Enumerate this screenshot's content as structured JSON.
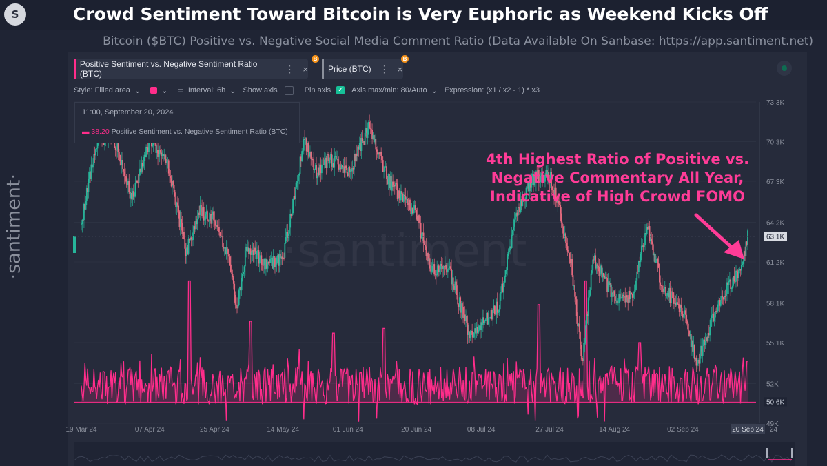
{
  "header": {
    "logo": "S",
    "title": "Crowd Sentiment Toward Bitcoin is Very Euphoric as Weekend Kicks Off",
    "subtitle": "Bitcoin ($BTC) Positive vs. Negative Social Media Comment Ratio (Data Available On Sanbase: https://app.santiment.net)"
  },
  "brand": {
    "side_logo": "·santiment·",
    "watermark": "·santiment"
  },
  "metric_tabs": [
    {
      "label": "Positive Sentiment vs. Negative Sentiment Ratio (BTC)",
      "color": "#ff2d8b",
      "menu": "⋮",
      "close": "×"
    },
    {
      "label": "Price (BTC)",
      "color": "#8b909c",
      "menu": "⋮",
      "close": "×"
    }
  ],
  "coin_badge": "B",
  "toolbar": {
    "style": "Style: Filled area",
    "interval": "Interval: 6h",
    "show_axis": "Show axis",
    "pin_axis": "Pin axis",
    "axis_maxmin": "Axis max/min: 80/Auto",
    "expression": "Expression: (x1 / x2 - 1) * x3"
  },
  "tooltip": {
    "date": "11:00, September 20, 2024",
    "value": "38.20",
    "label": "Positive Sentiment vs. Negative Sentiment Ratio (BTC)"
  },
  "annotation": {
    "lines": [
      "4th Highest Ratio of Positive vs.",
      "Negative Commentary All Year,",
      "Indicative of High Crowd FOMO"
    ]
  },
  "colors": {
    "sentiment": "#ff2d8b",
    "candle_up": "#26b59a",
    "candle_down": "#e56a7e",
    "annotation": "#ff3c97",
    "background": "#1f2434"
  },
  "chart_data": {
    "type": "line",
    "x_tick_labels": [
      "19 Mar 24",
      "07 Apr 24",
      "25 Apr 24",
      "14 May 24",
      "01 Jun 24",
      "20 Jun 24",
      "08 Jul 24",
      "27 Jul 24",
      "14 Aug 24",
      "02 Sep 24",
      "20 Sep 24"
    ],
    "x_tick_extra": "24",
    "price_axis": {
      "ticks": [
        "73.3K",
        "70.3K",
        "67.3K",
        "64.2K",
        "61.2K",
        "58.1K",
        "55.1K",
        "52K",
        "49K"
      ],
      "range": [
        49000,
        73300
      ],
      "current_price_label": "63.1K",
      "current_price": 63100,
      "sentiment_min_label": "50.6K",
      "sentiment_min_level": 50600
    },
    "sentiment_axis": {
      "max": 80
    },
    "price_knots": [
      [
        "19 Mar 24",
        64000
      ],
      [
        "23 Mar 24",
        70200
      ],
      [
        "28 Mar 24",
        70600
      ],
      [
        "02 Apr 24",
        66000
      ],
      [
        "07 Apr 24",
        70500
      ],
      [
        "12 Apr 24",
        68500
      ],
      [
        "17 Apr 24",
        62000
      ],
      [
        "21 Apr 24",
        65000
      ],
      [
        "25 Apr 24",
        64500
      ],
      [
        "30 Apr 24",
        60500
      ],
      [
        "01 May 24",
        57500
      ],
      [
        "04 May 24",
        62500
      ],
      [
        "09 May 24",
        61000
      ],
      [
        "14 May 24",
        61500
      ],
      [
        "20 May 24",
        70500
      ],
      [
        "23 May 24",
        68000
      ],
      [
        "27 May 24",
        69000
      ],
      [
        "01 Jun 24",
        67800
      ],
      [
        "07 Jun 24",
        71500
      ],
      [
        "12 Jun 24",
        67500
      ],
      [
        "16 Jun 24",
        66000
      ],
      [
        "20 Jun 24",
        64800
      ],
      [
        "24 Jun 24",
        60500
      ],
      [
        "29 Jun 24",
        60700
      ],
      [
        "05 Jul 24",
        55500
      ],
      [
        "08 Jul 24",
        56500
      ],
      [
        "13 Jul 24",
        58000
      ],
      [
        "18 Jul 24",
        65000
      ],
      [
        "22 Jul 24",
        67500
      ],
      [
        "27 Jul 24",
        67800
      ],
      [
        "29 Jul 24",
        66000
      ],
      [
        "02 Aug 24",
        61000
      ],
      [
        "05 Aug 24",
        53500
      ],
      [
        "08 Aug 24",
        61500
      ],
      [
        "14 Aug 24",
        58500
      ],
      [
        "19 Aug 24",
        58500
      ],
      [
        "23 Aug 24",
        64000
      ],
      [
        "27 Aug 24",
        59500
      ],
      [
        "02 Sep 24",
        57500
      ],
      [
        "06 Sep 24",
        53500
      ],
      [
        "11 Sep 24",
        57500
      ],
      [
        "15 Sep 24",
        59500
      ],
      [
        "18 Sep 24",
        60500
      ],
      [
        "20 Sep 24",
        63100
      ]
    ],
    "sentiment_range": [
      12,
      80
    ],
    "sentiment_spikes": [
      [
        "18 Apr 24",
        72
      ],
      [
        "05 May 24",
        55
      ],
      [
        "28 May 24",
        50
      ],
      [
        "11 Jun 24",
        52
      ],
      [
        "24 Jul 24",
        62
      ],
      [
        "06 Aug 24",
        72
      ],
      [
        "21 Aug 24",
        46
      ],
      [
        "20 Sep 24",
        38.2
      ]
    ]
  }
}
